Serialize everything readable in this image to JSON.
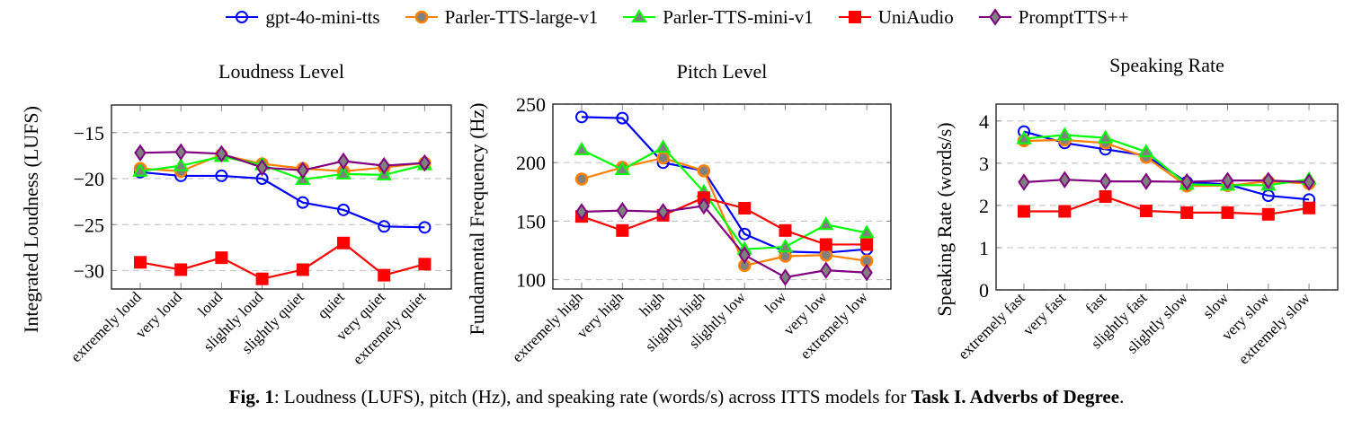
{
  "legend": [
    {
      "name": "gpt-4o-mini-tts",
      "color": "#0000ff",
      "marker": "open-circle"
    },
    {
      "name": "Parler-TTS-large-v1",
      "color": "#ff8000",
      "marker": "filled-circle"
    },
    {
      "name": "Parler-TTS-mini-v1",
      "color": "#00ff00",
      "marker": "triangle"
    },
    {
      "name": "UniAudio",
      "color": "#ff0000",
      "marker": "square"
    },
    {
      "name": "PromptTTS++",
      "color": "#800080",
      "marker": "diamond"
    }
  ],
  "caption": {
    "label": "Fig. 1",
    "text": ": Loudness (LUFS), pitch (Hz), and speaking rate (words/s) across ITTS models for ",
    "bold": "Task I. Adverbs of Degree",
    "end": "."
  },
  "chart_data": [
    {
      "type": "line",
      "title": "Loudness Level",
      "ylabel": "Integrated Loudness (LUFS)",
      "ylim": [
        -32,
        -12
      ],
      "yticks": [
        -30,
        -25,
        -20,
        -15
      ],
      "ytick_labels": [
        "−30",
        "−25",
        "−20",
        "−15"
      ],
      "grid": "horizontal dashed",
      "categories": [
        "extremely loud",
        "very loud",
        "loud",
        "slightly loud",
        "slightly quiet",
        "quiet",
        "very quiet",
        "extremely quiet"
      ],
      "series": [
        {
          "name": "gpt-4o-mini-tts",
          "values": [
            -19.3,
            -19.7,
            -19.7,
            -20.0,
            -22.6,
            -23.4,
            -25.2,
            -25.3
          ]
        },
        {
          "name": "Parler-TTS-large-v1",
          "values": [
            -18.9,
            -19.2,
            -17.4,
            -18.4,
            -18.9,
            -19.2,
            -18.8,
            -18.3
          ]
        },
        {
          "name": "Parler-TTS-mini-v1",
          "values": [
            -19.2,
            -18.6,
            -17.6,
            -18.5,
            -20.1,
            -19.5,
            -19.6,
            -18.5
          ]
        },
        {
          "name": "UniAudio",
          "values": [
            -29.1,
            -29.9,
            -28.6,
            -30.9,
            -29.9,
            -27.0,
            -30.5,
            -29.3
          ]
        },
        {
          "name": "PromptTTS++",
          "values": [
            -17.2,
            -17.1,
            -17.3,
            -18.8,
            -19.1,
            -18.1,
            -18.6,
            -18.3
          ]
        }
      ]
    },
    {
      "type": "line",
      "title": "Pitch Level",
      "ylabel": "Fundamental Frequency (Hz)",
      "ylim": [
        92,
        250
      ],
      "yticks": [
        100,
        150,
        200,
        250
      ],
      "ytick_labels": [
        "100",
        "150",
        "200",
        "250"
      ],
      "grid": "horizontal dashed",
      "categories": [
        "extremely high",
        "very high",
        "high",
        "slightly high",
        "slightly low",
        "low",
        "very low",
        "extremely low"
      ],
      "series": [
        {
          "name": "gpt-4o-mini-tts",
          "values": [
            239,
            238,
            200,
            193,
            139,
            124,
            123,
            126
          ]
        },
        {
          "name": "Parler-TTS-large-v1",
          "values": [
            186,
            196,
            204,
            193,
            112,
            120,
            121,
            116
          ]
        },
        {
          "name": "Parler-TTS-mini-v1",
          "values": [
            211,
            194,
            213,
            175,
            126,
            128,
            147,
            140
          ]
        },
        {
          "name": "UniAudio",
          "values": [
            154,
            142,
            155,
            170,
            161,
            142,
            130,
            130
          ]
        },
        {
          "name": "PromptTTS++",
          "values": [
            158,
            159,
            158,
            163,
            121,
            102,
            108,
            106
          ]
        }
      ]
    },
    {
      "type": "line",
      "title": "Speaking Rate",
      "ylabel": "Speaking Rate (words/s)",
      "ylim": [
        0,
        4.4
      ],
      "yticks": [
        0,
        1,
        2,
        3,
        4
      ],
      "ytick_labels": [
        "0",
        "1",
        "2",
        "3",
        "4"
      ],
      "grid": "horizontal dashed",
      "categories": [
        "extremely fast",
        "very fast",
        "fast",
        "slightly fast",
        "slightly slow",
        "slow",
        "very slow",
        "extremely slow"
      ],
      "series": [
        {
          "name": "gpt-4o-mini-tts",
          "values": [
            3.75,
            3.48,
            3.33,
            3.18,
            2.55,
            2.5,
            2.23,
            2.14
          ]
        },
        {
          "name": "Parler-TTS-large-v1",
          "values": [
            3.53,
            3.55,
            3.48,
            3.14,
            2.46,
            2.47,
            2.57,
            2.52
          ]
        },
        {
          "name": "Parler-TTS-mini-v1",
          "values": [
            3.58,
            3.67,
            3.6,
            3.27,
            2.5,
            2.48,
            2.48,
            2.62
          ]
        },
        {
          "name": "UniAudio",
          "values": [
            1.86,
            1.86,
            2.21,
            1.87,
            1.83,
            1.83,
            1.79,
            1.94
          ]
        },
        {
          "name": "PromptTTS++",
          "values": [
            2.55,
            2.61,
            2.57,
            2.57,
            2.56,
            2.59,
            2.59,
            2.55
          ]
        }
      ]
    }
  ]
}
